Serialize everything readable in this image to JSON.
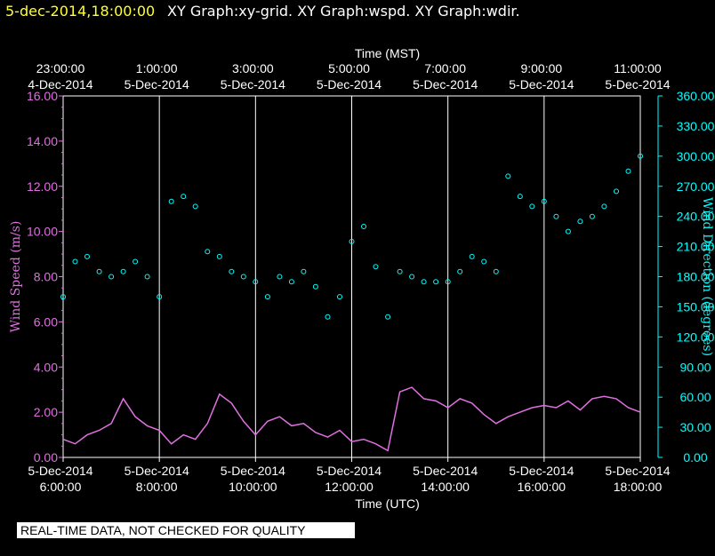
{
  "header": {
    "timestamp": "5-dec-2014,18:00:00",
    "graphs": "XY Graph:xy-grid.  XY Graph:wspd.  XY Graph:wdir."
  },
  "colors": {
    "timestamp": "#ffff33",
    "graph_titles": "#ffffff",
    "wind_speed": "#e070e0",
    "wind_direction": "#00ffff",
    "grid": "#ffffff"
  },
  "stamp": "REAL-TIME DATA, NOT CHECKED FOR QUALITY",
  "chart_data": {
    "type": "scatter",
    "grid": true,
    "x_top": {
      "label": "Time (MST)",
      "ticks": [
        {
          "time": "23:00:00",
          "date": "4-Dec-2014"
        },
        {
          "time": "1:00:00",
          "date": "5-Dec-2014"
        },
        {
          "time": "3:00:00",
          "date": "5-Dec-2014"
        },
        {
          "time": "5:00:00",
          "date": "5-Dec-2014"
        },
        {
          "time": "7:00:00",
          "date": "5-Dec-2014"
        },
        {
          "time": "9:00:00",
          "date": "5-Dec-2014"
        },
        {
          "time": "11:00:00",
          "date": "5-Dec-2014"
        }
      ]
    },
    "x_bottom": {
      "label": "Time (UTC)",
      "range": [
        "2014-12-05 06:00",
        "2014-12-05 18:00"
      ],
      "ticks": [
        {
          "date": "5-Dec-2014",
          "time": "6:00:00"
        },
        {
          "date": "5-Dec-2014",
          "time": "8:00:00"
        },
        {
          "date": "5-Dec-2014",
          "time": "10:00:00"
        },
        {
          "date": "5-Dec-2014",
          "time": "12:00:00"
        },
        {
          "date": "5-Dec-2014",
          "time": "14:00:00"
        },
        {
          "date": "5-Dec-2014",
          "time": "16:00:00"
        },
        {
          "date": "5-Dec-2014",
          "time": "18:00:00"
        }
      ]
    },
    "y_left": {
      "label": "Wind Speed (m/s)",
      "range": [
        0,
        16
      ],
      "ticks": [
        "0.00",
        "2.00",
        "4.00",
        "6.00",
        "8.00",
        "10.00",
        "12.00",
        "14.00",
        "16.00"
      ]
    },
    "y_right": {
      "label": "Wind Direction (degrees)",
      "range": [
        0,
        360
      ],
      "ticks": [
        "0.00",
        "30.00",
        "60.00",
        "90.00",
        "120.00",
        "150.00",
        "180.00",
        "210.00",
        "240.00",
        "270.00",
        "300.00",
        "330.00",
        "360.00"
      ]
    },
    "series": [
      {
        "name": "Wind Speed (m/s)",
        "axis": "left",
        "style": "line",
        "x_hours_utc": [
          6.0,
          6.25,
          6.5,
          6.75,
          7.0,
          7.25,
          7.5,
          7.75,
          8.0,
          8.25,
          8.5,
          8.75,
          9.0,
          9.25,
          9.5,
          9.75,
          10.0,
          10.25,
          10.5,
          10.75,
          11.0,
          11.25,
          11.5,
          11.75,
          12.0,
          12.25,
          12.5,
          12.75,
          13.0,
          13.25,
          13.5,
          13.75,
          14.0,
          14.25,
          14.5,
          14.75,
          15.0,
          15.25,
          15.5,
          15.75,
          16.0,
          16.25,
          16.5,
          16.75,
          17.0,
          17.25,
          17.5,
          17.75,
          18.0
        ],
        "values": [
          0.8,
          0.6,
          1.0,
          1.2,
          1.5,
          2.6,
          1.8,
          1.4,
          1.2,
          0.6,
          1.0,
          0.8,
          1.5,
          2.8,
          2.4,
          1.6,
          1.0,
          1.6,
          1.8,
          1.4,
          1.5,
          1.1,
          0.9,
          1.2,
          0.7,
          0.8,
          0.6,
          0.3,
          2.9,
          3.1,
          2.6,
          2.5,
          2.2,
          2.6,
          2.4,
          1.9,
          1.5,
          1.8,
          2.0,
          2.2,
          2.3,
          2.2,
          2.5,
          2.1,
          2.6,
          2.7,
          2.6,
          2.2,
          2.0
        ]
      },
      {
        "name": "Wind Direction (degrees)",
        "axis": "right",
        "style": "circles",
        "x_hours_utc": [
          6.0,
          6.25,
          6.5,
          6.75,
          7.0,
          7.25,
          7.5,
          7.75,
          8.0,
          8.25,
          8.5,
          8.75,
          9.0,
          9.25,
          9.5,
          9.75,
          10.0,
          10.25,
          10.5,
          10.75,
          11.0,
          11.25,
          11.5,
          11.75,
          12.0,
          12.25,
          12.5,
          12.75,
          13.0,
          13.25,
          13.5,
          13.75,
          14.0,
          14.25,
          14.5,
          14.75,
          15.0,
          15.25,
          15.5,
          15.75,
          16.0,
          16.25,
          16.5,
          16.75,
          17.0,
          17.25,
          17.5,
          17.75,
          18.0
        ],
        "values": [
          160,
          195,
          200,
          185,
          180,
          185,
          195,
          180,
          160,
          255,
          260,
          250,
          205,
          200,
          185,
          180,
          175,
          160,
          180,
          175,
          185,
          170,
          140,
          160,
          215,
          230,
          190,
          140,
          185,
          180,
          175,
          175,
          175,
          185,
          200,
          195,
          185,
          280,
          260,
          250,
          255,
          240,
          225,
          235,
          240,
          250,
          265,
          285,
          300
        ]
      }
    ]
  }
}
